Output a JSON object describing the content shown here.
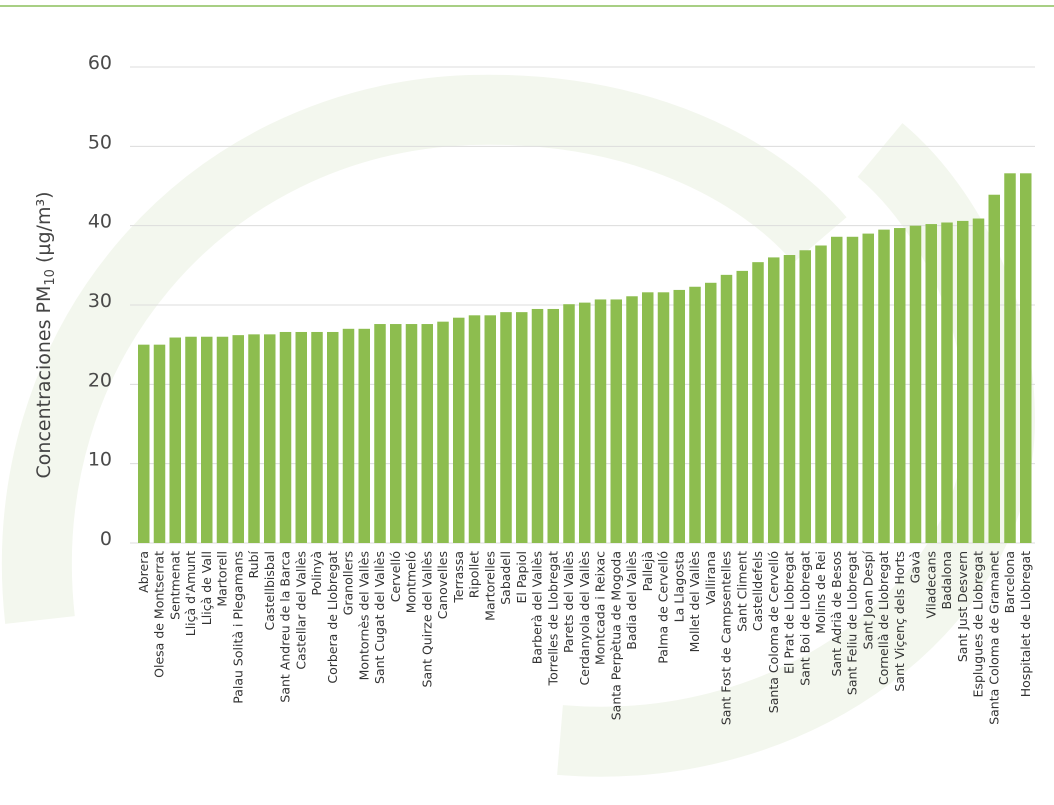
{
  "colors": {
    "bar": "#8dbd4f",
    "gridline": "#dcdcdc",
    "top_rule": "#a8cf84",
    "watermark": "#f3f7ee"
  },
  "chart_data": {
    "type": "bar",
    "ylabel_main": "Concentraciones PM",
    "ylabel_sub": "10",
    "ylabel_unit": " (µg/m³)",
    "ylim": [
      0,
      60
    ],
    "yticks": [
      "0",
      "10",
      "20",
      "30",
      "40",
      "50",
      "60"
    ],
    "grid": true,
    "categories": [
      "Abrera",
      "Olesa de Montserrat",
      "Sentmenat",
      "Lliçà d'Amunt",
      "Lliçà de Vall",
      "Martorell",
      "Palau Solità i Plegamans",
      "Rubí",
      "Castellbisbal",
      "Sant Andreu de la Barca",
      "Castellar del Vallès",
      "Polinyà",
      "Corbera de Llobregat",
      "Granollers",
      "Montornès del Vallès",
      "Sant Cugat del Vallès",
      "Cervelló",
      "Montmeló",
      "Sant Quirze del Vallès",
      "Canovelles",
      "Terrassa",
      "Ripollet",
      "Martorelles",
      "Sabadell",
      "El Papiol",
      "Barberà del Vallès",
      "Torrelles de Llobregat",
      "Parets del Vallès",
      "Cerdanyola del Vallès",
      "Montcada i Reixac",
      "Santa Perpètua de Mogoda",
      "Badia del Vallès",
      "Pallejà",
      "Palma de Cervelló",
      "La Llagosta",
      "Mollet del Vallès",
      "Vallirana",
      "Sant Fost de Campsentelles",
      "Sant Climent",
      "Castelldefels",
      "Santa Coloma de Cervelló",
      "El Prat de Llobregat",
      "Sant Boi de Llobregat",
      "Molins de Rei",
      "Sant Adrià de Besos",
      "Sant Feliu de Llobregat",
      "Sant Joan Despí",
      "Cornellà de Llobregat",
      "Sant Viçenç dels Horts",
      "Gavà",
      "Viladecans",
      "Badalona",
      "Sant Just Desvern",
      "Esplugues de Llobregat",
      "Santa Coloma de Gramanet",
      "Barcelona",
      "Hospitalet de Llobregat"
    ],
    "values": [
      25.0,
      25.0,
      25.9,
      26.0,
      26.0,
      26.0,
      26.2,
      26.3,
      26.3,
      26.6,
      26.6,
      26.6,
      26.6,
      27.0,
      27.0,
      27.6,
      27.6,
      27.6,
      27.6,
      27.9,
      28.4,
      28.7,
      28.7,
      29.1,
      29.1,
      29.5,
      29.5,
      30.1,
      30.3,
      30.7,
      30.7,
      31.1,
      31.6,
      31.6,
      31.9,
      32.3,
      32.8,
      33.8,
      34.3,
      35.4,
      36.0,
      36.3,
      36.9,
      37.5,
      38.6,
      38.6,
      39.0,
      39.5,
      39.7,
      40.0,
      40.2,
      40.4,
      40.6,
      40.9,
      43.9,
      46.6,
      46.6
    ]
  }
}
